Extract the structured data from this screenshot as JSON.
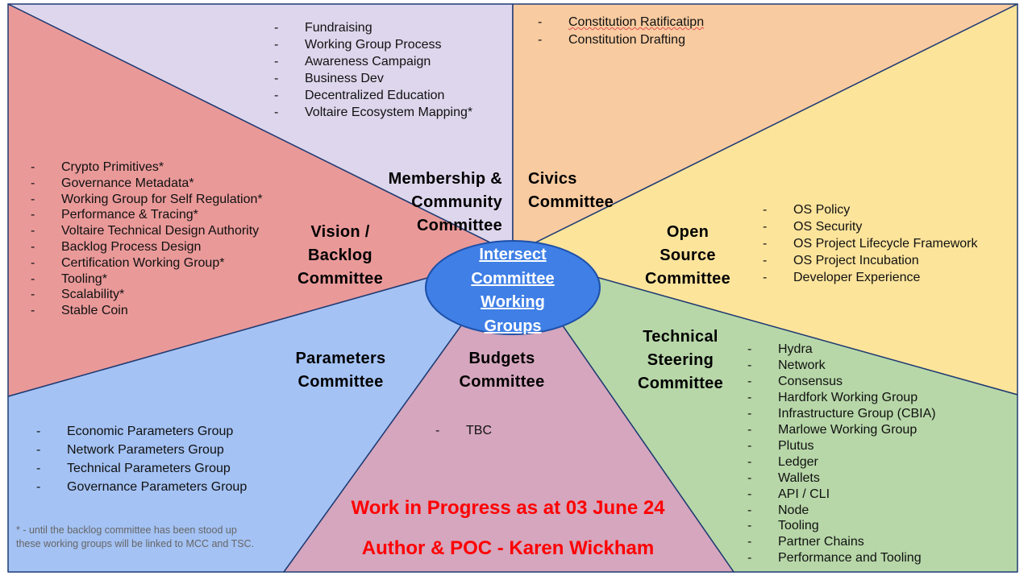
{
  "center": {
    "lines": [
      "Intersect",
      "Committee",
      "Working",
      "Groups"
    ],
    "fill": "#3f7fe6",
    "stroke": "#1d4fa8"
  },
  "segments": {
    "membership": {
      "title_lines": [
        "Membership &",
        "Community",
        "Committee"
      ],
      "fill": "#ddd6ec",
      "items": [
        "Fundraising",
        "Working Group Process",
        "Awareness Campaign",
        "Business Dev",
        "Decentralized Education",
        "Voltaire Ecosystem Mapping*"
      ]
    },
    "civics": {
      "title_lines": [
        "Civics",
        "Committee"
      ],
      "fill": "#f8cba0",
      "items": [
        "Constitution Ratificatipn",
        "Constitution Drafting"
      ]
    },
    "open_source": {
      "title_lines": [
        "Open",
        "Source",
        "Committee"
      ],
      "fill": "#fde49b",
      "items": [
        "OS Policy",
        "OS Security",
        "OS Project Lifecycle Framework",
        "OS Project Incubation",
        "Developer Experience"
      ]
    },
    "technical_steering": {
      "title_lines": [
        "Technical",
        "Steering",
        "Committee"
      ],
      "fill": "#b7d7a8",
      "items": [
        "Hydra",
        "Network",
        "Consensus",
        "Hardfork Working Group",
        "Infrastructure Group (CBIA)",
        "Marlowe Working Group",
        "Plutus",
        "Ledger",
        "Wallets",
        "API / CLI",
        "Node",
        "Tooling",
        "Partner Chains",
        "Performance and Tooling"
      ]
    },
    "budgets": {
      "title_lines": [
        "Budgets",
        "Committee"
      ],
      "fill": "#d5a6bd",
      "items": [
        "TBC"
      ]
    },
    "parameters": {
      "title_lines": [
        "Parameters",
        "Committee"
      ],
      "fill": "#a4c2f4",
      "items": [
        "Economic Parameters Group",
        "Network Parameters Group",
        "Technical Parameters Group",
        "Governance Parameters Group"
      ]
    },
    "vision_backlog": {
      "title_lines": [
        "Vision /",
        "Backlog",
        "Committee"
      ],
      "fill": "#ea9999",
      "items": [
        "Crypto Primitives*",
        "Governance Metadata*",
        "Working Group for Self Regulation*",
        "Performance & Tracing*",
        "Voltaire Technical Design Authority",
        "Backlog Process Design",
        "Certification Working Group*",
        "Tooling*",
        "Scalability*",
        "Stable Coin"
      ]
    }
  },
  "banner": {
    "line1": "Work in Progress as at 03 June 24",
    "line2": "Author & POC - Karen Wickham",
    "color": "#ff0000"
  },
  "footnote": "* - until the backlog committee has been stood up these working groups will be linked to MCC and TSC."
}
